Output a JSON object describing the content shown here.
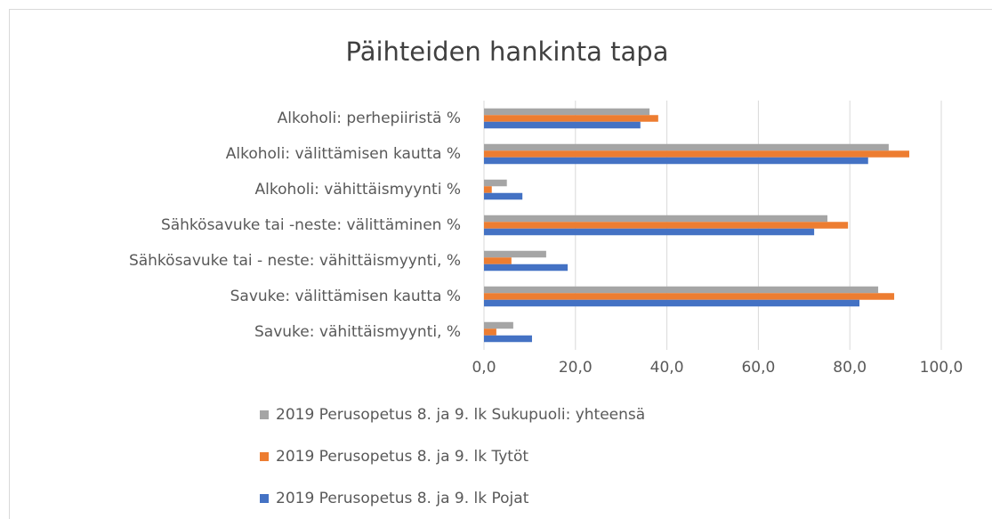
{
  "chart_data": {
    "type": "bar",
    "orientation": "horizontal",
    "title": "Päihteiden hankinta tapa",
    "categories": [
      "Alkoholi: perhepiiristä %",
      "Alkoholi: välittämisen kautta %",
      "Alkoholi:  vähittäismyynti %",
      "Sähkösavuke tai -neste: välittäminen %",
      "Sähkösavuke tai - neste: vähittäismyynti, %",
      "Savuke: välittämisen kautta %",
      "Savuke: vähittäismyynti, %"
    ],
    "series": [
      {
        "name": "2019 Perusopetus 8. ja 9. lk Sukupuoli: yhteensä",
        "color": "#a5a5a5",
        "values": [
          36.2,
          88.5,
          5.0,
          75.1,
          13.6,
          86.2,
          6.4
        ]
      },
      {
        "name": "2019 Perusopetus 8. ja 9. lk Tytöt",
        "color": "#ed7d31",
        "values": [
          38.1,
          93.0,
          1.7,
          79.6,
          6.0,
          89.7,
          2.7
        ]
      },
      {
        "name": "2019 Perusopetus 8. ja 9. lk Pojat",
        "color": "#4472c4",
        "values": [
          34.2,
          84.0,
          8.4,
          72.2,
          18.3,
          82.1,
          10.5
        ]
      }
    ],
    "xlim": [
      0,
      100
    ],
    "xticks": [
      {
        "value": 0,
        "label": "0,0"
      },
      {
        "value": 20,
        "label": "20,0"
      },
      {
        "value": 40,
        "label": "40,0"
      },
      {
        "value": 60,
        "label": "60,0"
      },
      {
        "value": 80,
        "label": "80,0"
      },
      {
        "value": 100,
        "label": "100,0"
      }
    ],
    "grid": true,
    "legend": "bottom"
  }
}
